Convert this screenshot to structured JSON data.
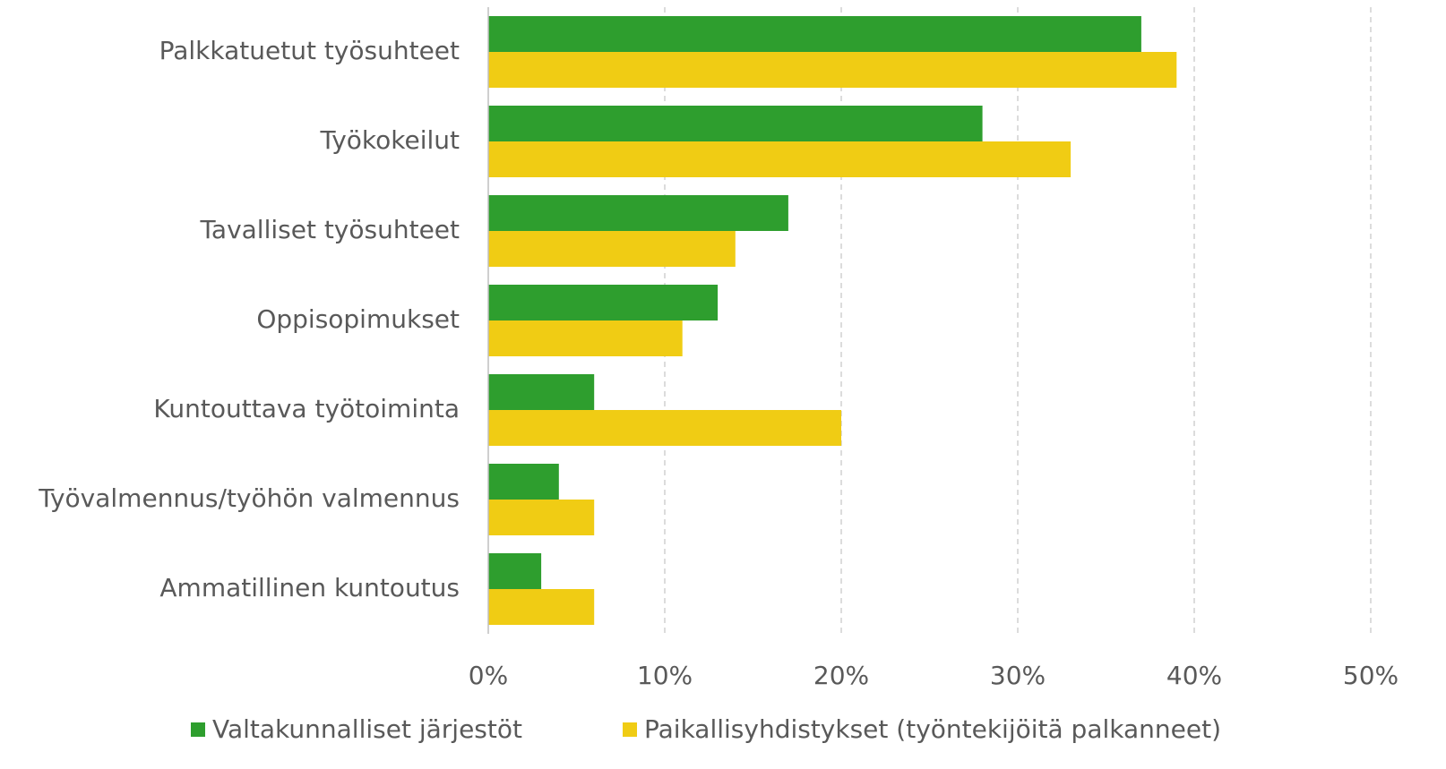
{
  "chart_data": {
    "type": "bar",
    "orientation": "horizontal",
    "categories": [
      "Palkkatuetut työsuhteet",
      "Työkokeilut",
      "Tavalliset työsuhteet",
      "Oppisopimukset",
      "Kuntouttava työtoiminta",
      "Työvalmennus/työhön valmennus",
      "Ammatillinen kuntoutus"
    ],
    "series": [
      {
        "name": "Valtakunnalliset järjestöt",
        "color": "#2e9e2e",
        "values": [
          37,
          28,
          17,
          13,
          6,
          4,
          3
        ]
      },
      {
        "name": "Paikallisyhdistykset (työntekijöitä palkanneet)",
        "color": "#f0cc14",
        "values": [
          39,
          33,
          14,
          11,
          20,
          6,
          6
        ]
      }
    ],
    "xlim": [
      0,
      50
    ],
    "xticks": [
      {
        "value": 0,
        "label": "0%"
      },
      {
        "value": 10,
        "label": "10%"
      },
      {
        "value": 20,
        "label": "20%"
      },
      {
        "value": 30,
        "label": "30%"
      },
      {
        "value": 40,
        "label": "40%"
      },
      {
        "value": 50,
        "label": "50%"
      }
    ],
    "grid": true,
    "legend": "bottom"
  }
}
